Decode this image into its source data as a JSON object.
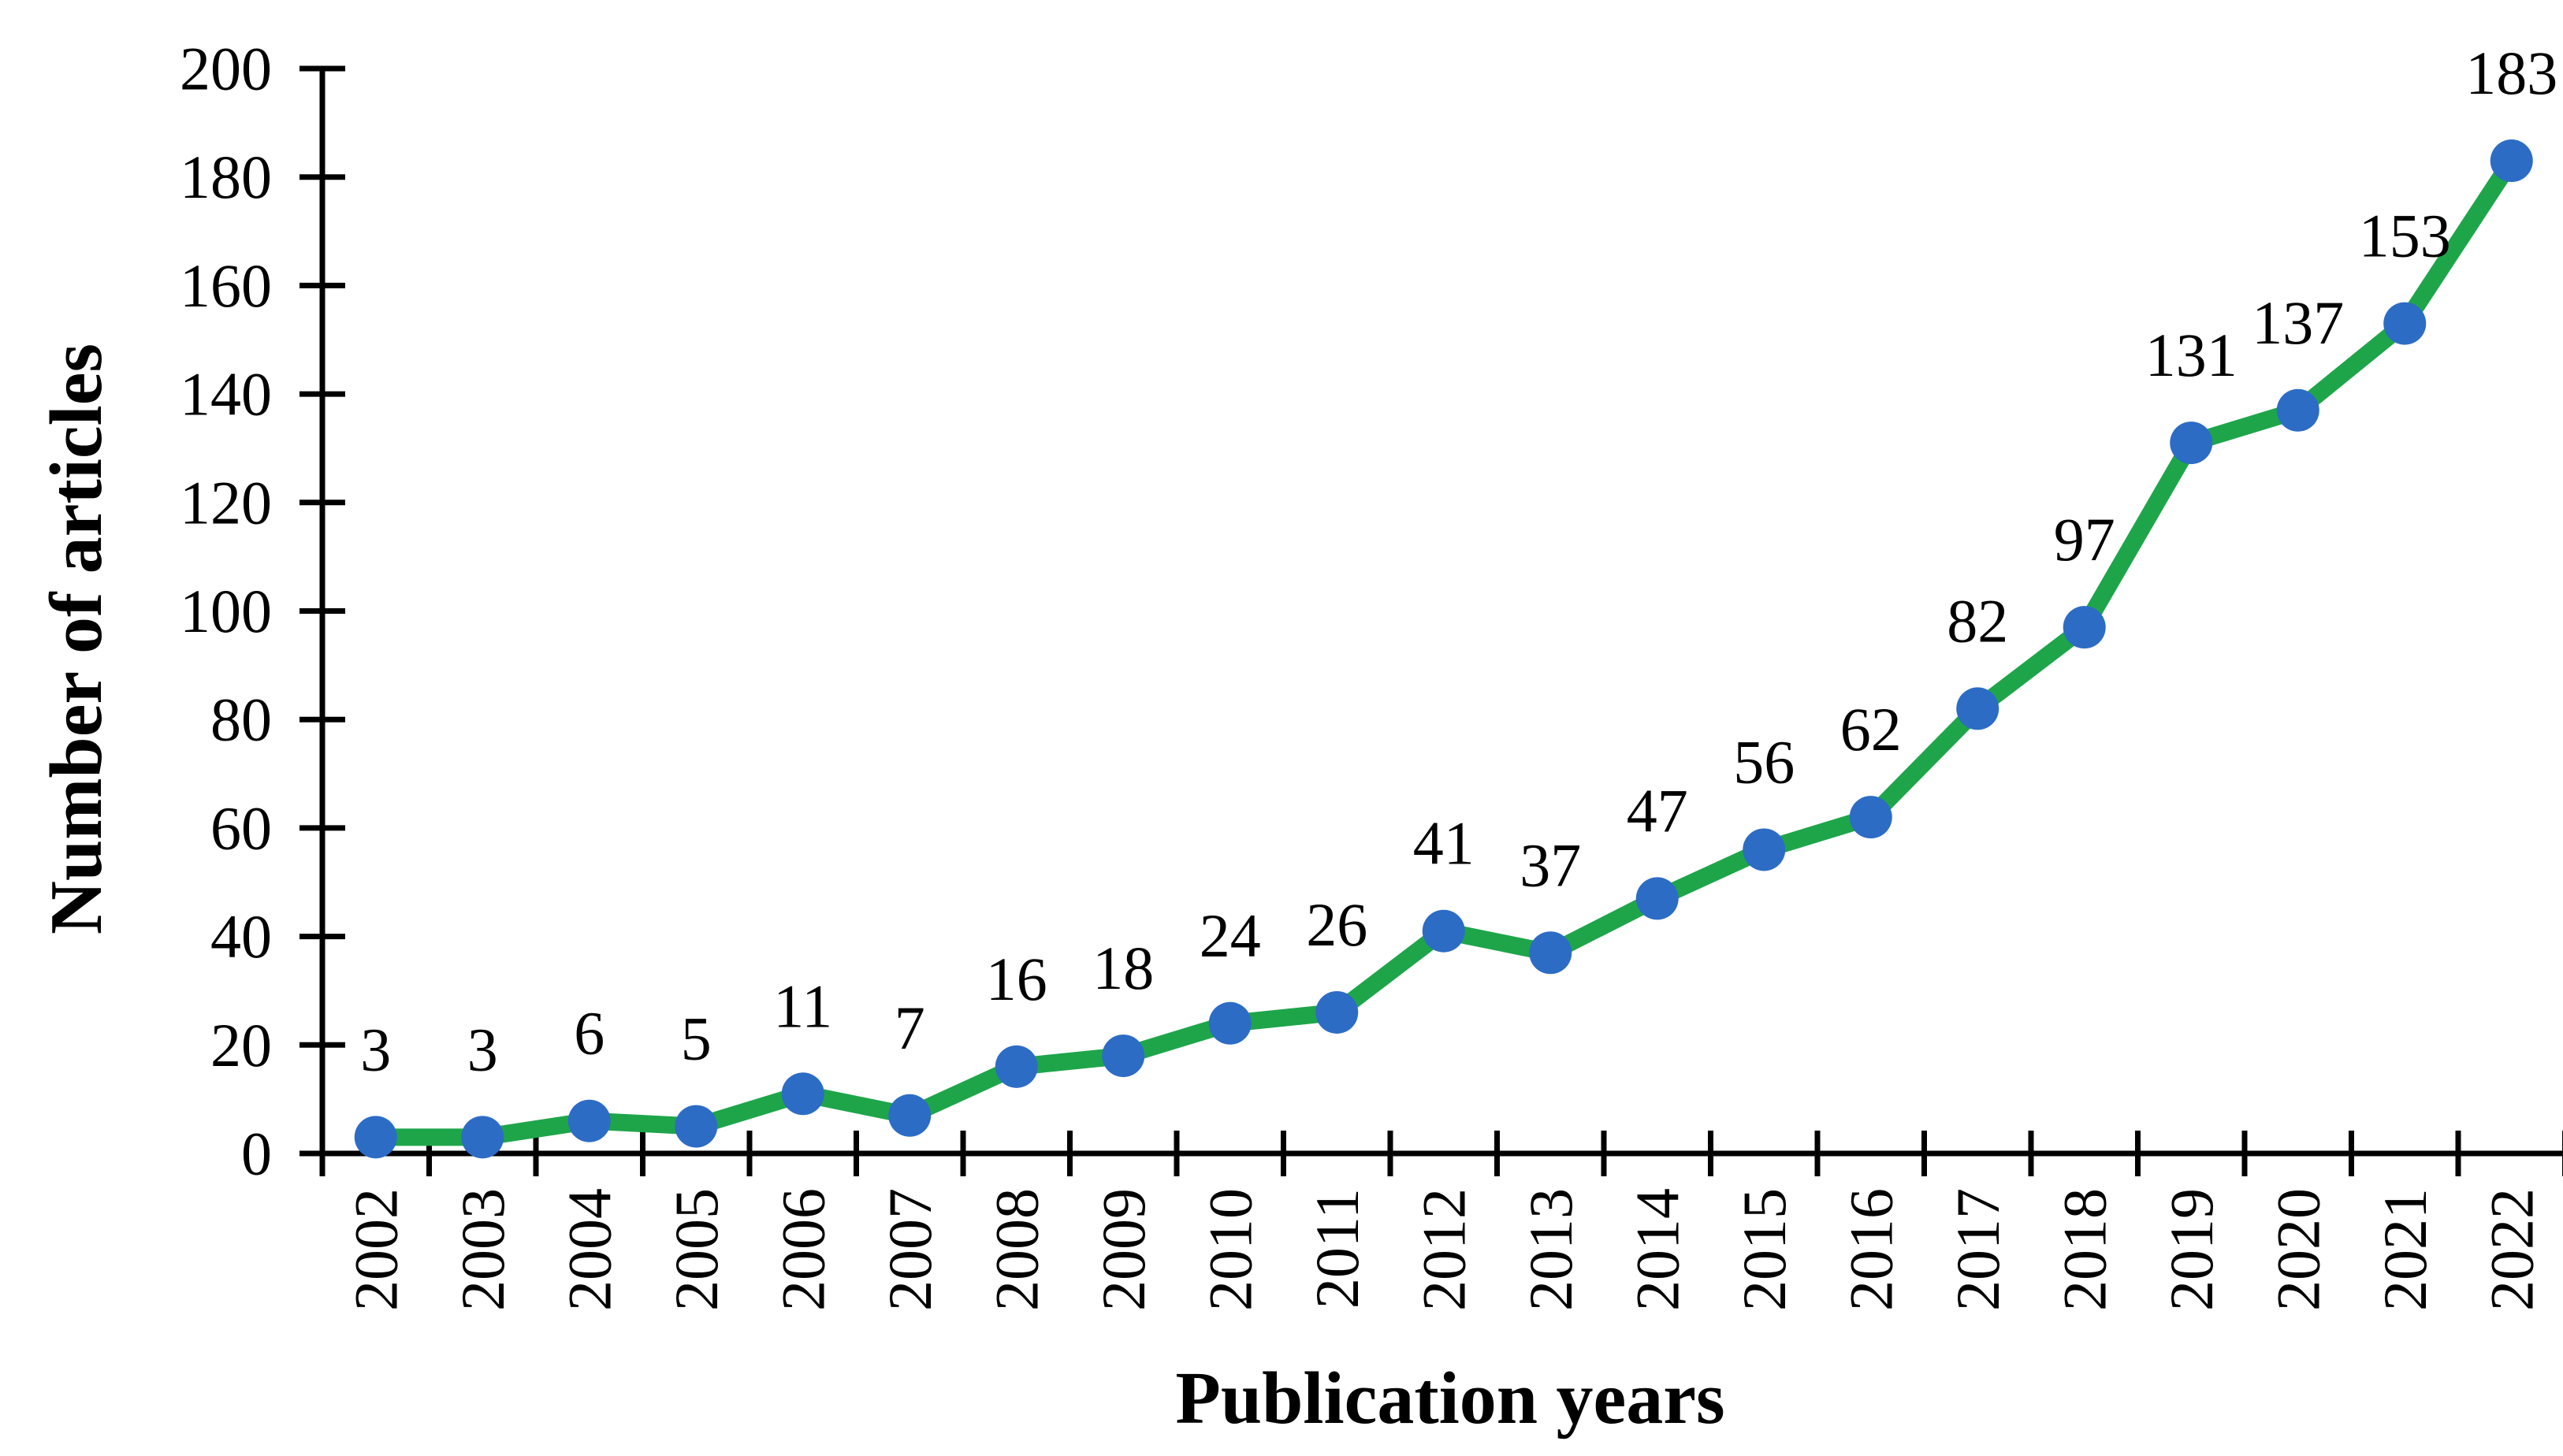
{
  "chart_data": {
    "type": "line",
    "title": "",
    "xlabel": "Publication years",
    "ylabel": "Number of articles",
    "categories": [
      "2002",
      "2003",
      "2004",
      "2005",
      "2006",
      "2007",
      "2008",
      "2009",
      "2010",
      "2011",
      "2012",
      "2013",
      "2014",
      "2015",
      "2016",
      "2017",
      "2018",
      "2019",
      "2020",
      "2021",
      "2022"
    ],
    "series": [
      {
        "name": "Number of articles",
        "values": [
          3,
          3,
          6,
          5,
          11,
          7,
          16,
          18,
          24,
          26,
          41,
          37,
          47,
          56,
          62,
          82,
          97,
          131,
          137,
          153,
          183
        ]
      }
    ],
    "data_labels": [
      3,
      3,
      6,
      5,
      11,
      7,
      16,
      18,
      24,
      26,
      41,
      37,
      47,
      56,
      62,
      82,
      97,
      131,
      137,
      153,
      183
    ],
    "yticks": [
      0,
      20,
      40,
      60,
      80,
      100,
      120,
      140,
      160,
      180,
      200
    ],
    "ylim": [
      0,
      200
    ],
    "grid": "off",
    "legend": "none",
    "data_label_position": "above",
    "colors": {
      "line": "#1EA54A",
      "marker": "#2C6CC5",
      "axis": "#000000",
      "text": "#000000"
    }
  }
}
